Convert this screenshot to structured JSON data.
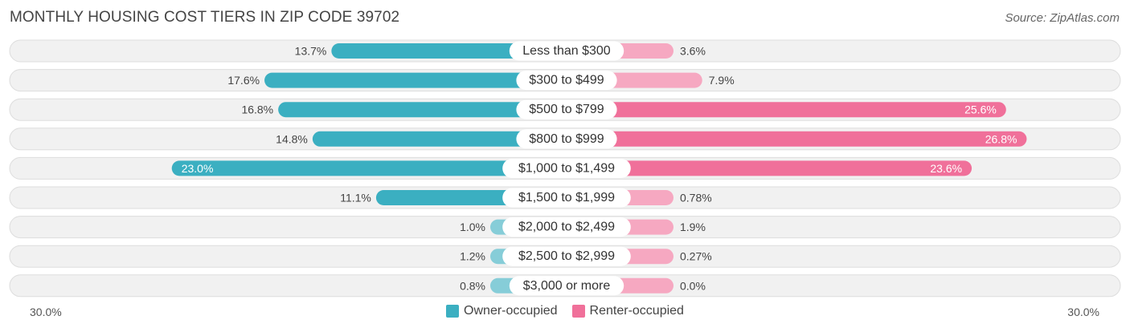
{
  "header": {
    "title": "MONTHLY HOUSING COST TIERS IN ZIP CODE 39702",
    "source": "Source: ZipAtlas.com"
  },
  "colors": {
    "owner": "#3bafc1",
    "owner_light": "#86cdd8",
    "renter": "#f0709a",
    "renter_light": "#f6a8c1",
    "row_bg": "#eeeeee",
    "row_border": "#dddddd"
  },
  "axis": {
    "left_label": "30.0%",
    "right_label": "30.0%"
  },
  "legend": {
    "owner_label": "Owner-occupied",
    "renter_label": "Renter-occupied"
  },
  "chart_data": {
    "type": "bar",
    "title": "MONTHLY HOUSING COST TIERS IN ZIP CODE 39702",
    "orientation": "horizontal-diverging",
    "xlim": [
      -30,
      30
    ],
    "categories": [
      "Less than $300",
      "$300 to $499",
      "$500 to $799",
      "$800 to $999",
      "$1,000 to $1,499",
      "$1,500 to $1,999",
      "$2,000 to $2,499",
      "$2,500 to $2,999",
      "$3,000 or more"
    ],
    "series": [
      {
        "name": "Owner-occupied",
        "values": [
          13.7,
          17.6,
          16.8,
          14.8,
          23.0,
          11.1,
          1.0,
          1.2,
          0.8
        ],
        "labels": [
          "13.7%",
          "17.6%",
          "16.8%",
          "14.8%",
          "23.0%",
          "11.1%",
          "1.0%",
          "1.2%",
          "0.8%"
        ]
      },
      {
        "name": "Renter-occupied",
        "values": [
          3.6,
          7.9,
          25.6,
          26.8,
          23.6,
          0.78,
          1.9,
          0.27,
          0.0
        ],
        "labels": [
          "3.6%",
          "7.9%",
          "25.6%",
          "26.8%",
          "23.6%",
          "0.78%",
          "1.9%",
          "0.27%",
          "0.0%"
        ]
      }
    ],
    "legend_position": "bottom-center",
    "grid": false
  }
}
